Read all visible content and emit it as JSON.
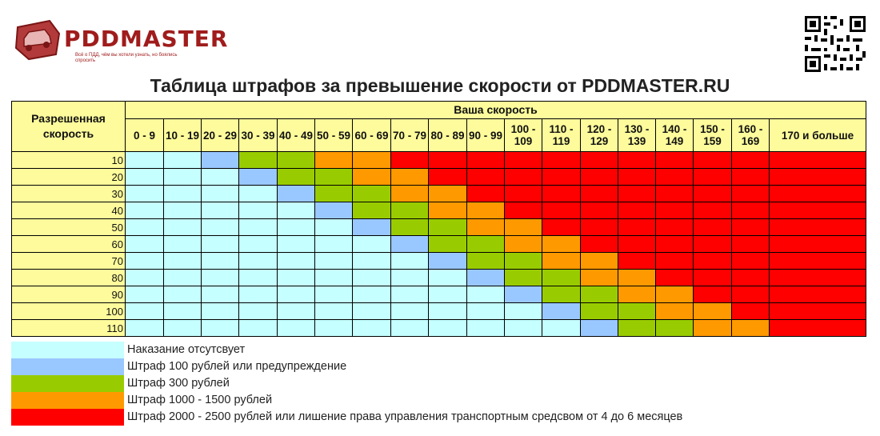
{
  "brand": {
    "name": "PDDMASTER",
    "tagline": "Всё о ПДД, чём вы хотели узнать, но боялись спросить"
  },
  "title": "Таблица штрафов за превышение скорости от PDDMASTER.RU",
  "table": {
    "allowed_header": "Разрешенная скорость",
    "your_speed_header": "Ваша скорость",
    "speed_ranges": [
      "0 - 9",
      "10 - 19",
      "20 - 29",
      "30 - 39",
      "40 - 49",
      "50 - 59",
      "60 - 69",
      "70 - 79",
      "80 - 89",
      "90 - 99",
      "100 - 109",
      "110 - 119",
      "120 - 129",
      "130 - 139",
      "140 - 149",
      "150 - 159",
      "160 - 169",
      "170 и больше"
    ],
    "rows": [
      {
        "allowed": "10",
        "levels": [
          0,
          0,
          1,
          2,
          2,
          3,
          3,
          4,
          4,
          4,
          4,
          4,
          4,
          4,
          4,
          4,
          4,
          4
        ]
      },
      {
        "allowed": "20",
        "levels": [
          0,
          0,
          0,
          1,
          2,
          2,
          3,
          3,
          4,
          4,
          4,
          4,
          4,
          4,
          4,
          4,
          4,
          4
        ]
      },
      {
        "allowed": "30",
        "levels": [
          0,
          0,
          0,
          0,
          1,
          2,
          2,
          3,
          3,
          4,
          4,
          4,
          4,
          4,
          4,
          4,
          4,
          4
        ]
      },
      {
        "allowed": "40",
        "levels": [
          0,
          0,
          0,
          0,
          0,
          1,
          2,
          2,
          3,
          3,
          4,
          4,
          4,
          4,
          4,
          4,
          4,
          4
        ]
      },
      {
        "allowed": "50",
        "levels": [
          0,
          0,
          0,
          0,
          0,
          0,
          1,
          2,
          2,
          3,
          3,
          4,
          4,
          4,
          4,
          4,
          4,
          4
        ]
      },
      {
        "allowed": "60",
        "levels": [
          0,
          0,
          0,
          0,
          0,
          0,
          0,
          1,
          2,
          2,
          3,
          3,
          4,
          4,
          4,
          4,
          4,
          4
        ]
      },
      {
        "allowed": "70",
        "levels": [
          0,
          0,
          0,
          0,
          0,
          0,
          0,
          0,
          1,
          2,
          2,
          3,
          3,
          4,
          4,
          4,
          4,
          4
        ]
      },
      {
        "allowed": "80",
        "levels": [
          0,
          0,
          0,
          0,
          0,
          0,
          0,
          0,
          0,
          1,
          2,
          2,
          3,
          3,
          4,
          4,
          4,
          4
        ]
      },
      {
        "allowed": "90",
        "levels": [
          0,
          0,
          0,
          0,
          0,
          0,
          0,
          0,
          0,
          0,
          1,
          2,
          2,
          3,
          3,
          4,
          4,
          4
        ]
      },
      {
        "allowed": "100",
        "levels": [
          0,
          0,
          0,
          0,
          0,
          0,
          0,
          0,
          0,
          0,
          0,
          1,
          2,
          2,
          3,
          3,
          4,
          4
        ]
      },
      {
        "allowed": "110",
        "levels": [
          0,
          0,
          0,
          0,
          0,
          0,
          0,
          0,
          0,
          0,
          0,
          0,
          1,
          2,
          2,
          3,
          3,
          4
        ]
      }
    ]
  },
  "legend": [
    {
      "color": "#c5ffff",
      "label": "Наказание отсутсвует"
    },
    {
      "color": "#99c7ff",
      "label": "Штраф 100 рублей или предупреждение"
    },
    {
      "color": "#99cc00",
      "label": "Штраф 300 рублей"
    },
    {
      "color": "#ff9900",
      "label": "Штраф 1000 - 1500 рублей"
    },
    {
      "color": "#ff0000",
      "label": "Штраф 2000 - 2500 рублей или лишение права управления транспортным средсвом от 4 до 6 месяцев"
    }
  ]
}
